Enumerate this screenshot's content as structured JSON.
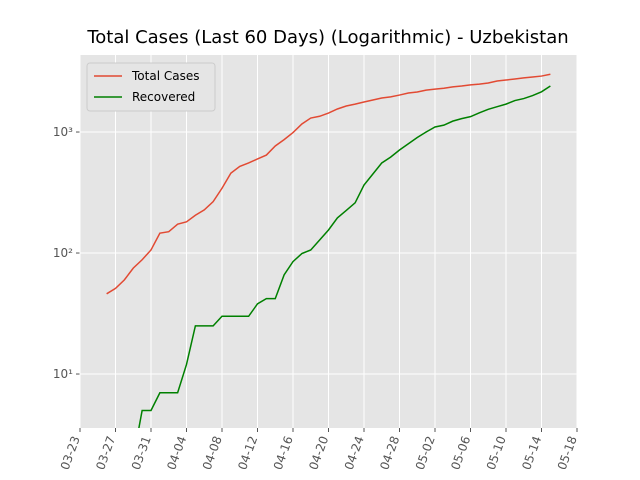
{
  "chart_data": {
    "type": "line",
    "title": "Total Cases (Last 60 Days) (Logarithmic) - Uzbekistan",
    "x": [
      "03-26",
      "03-27",
      "03-28",
      "03-29",
      "03-30",
      "03-31",
      "04-01",
      "04-02",
      "04-03",
      "04-04",
      "04-05",
      "04-06",
      "04-07",
      "04-08",
      "04-09",
      "04-10",
      "04-11",
      "04-12",
      "04-13",
      "04-14",
      "04-15",
      "04-16",
      "04-17",
      "04-18",
      "04-19",
      "04-20",
      "04-21",
      "04-22",
      "04-23",
      "04-24",
      "04-25",
      "04-26",
      "04-27",
      "04-28",
      "04-29",
      "04-30",
      "05-01",
      "05-02",
      "05-03",
      "05-04",
      "05-05",
      "05-06",
      "05-07",
      "05-08",
      "05-09",
      "05-10",
      "05-11",
      "05-12",
      "05-13",
      "05-14",
      "05-15"
    ],
    "series": [
      {
        "name": "Total Cases",
        "color": "#e24a33",
        "values": [
          46,
          51,
          60,
          75,
          88,
          106,
          146,
          150,
          173,
          181,
          205,
          227,
          266,
          343,
          457,
          520,
          555,
          599,
          645,
          767,
          865,
          990,
          1165,
          1305,
          1349,
          1435,
          1550,
          1640,
          1700,
          1770,
          1840,
          1910,
          1950,
          2020,
          2100,
          2140,
          2220,
          2260,
          2300,
          2360,
          2400,
          2450,
          2490,
          2540,
          2640,
          2690,
          2740,
          2800,
          2850,
          2900,
          3000
        ]
      },
      {
        "name": "Recovered",
        "color": "#008000",
        "values": [
          null,
          null,
          null,
          2,
          5,
          5,
          7,
          7,
          7,
          12,
          25,
          25,
          25,
          30,
          30,
          30,
          30,
          38,
          42,
          42,
          66,
          85,
          99,
          106,
          128,
          155,
          195,
          225,
          260,
          365,
          450,
          555,
          620,
          710,
          800,
          900,
          1000,
          1100,
          1140,
          1230,
          1290,
          1340,
          1440,
          1540,
          1620,
          1700,
          1820,
          1890,
          2000,
          2150,
          2400
        ]
      }
    ],
    "xlim": [
      "03-23",
      "05-18"
    ],
    "xticks": [
      "03-23",
      "03-27",
      "03-31",
      "04-04",
      "04-08",
      "04-12",
      "04-16",
      "04-20",
      "04-24",
      "04-28",
      "05-02",
      "05-06",
      "05-10",
      "05-14",
      "05-18"
    ],
    "ylim": [
      3.58,
      4330
    ],
    "yticks": [
      {
        "value": 10,
        "label": "10¹"
      },
      {
        "value": 100,
        "label": "10²"
      },
      {
        "value": 1000,
        "label": "10³"
      }
    ],
    "log_y": true,
    "grid": true,
    "legend": "upper-left"
  }
}
